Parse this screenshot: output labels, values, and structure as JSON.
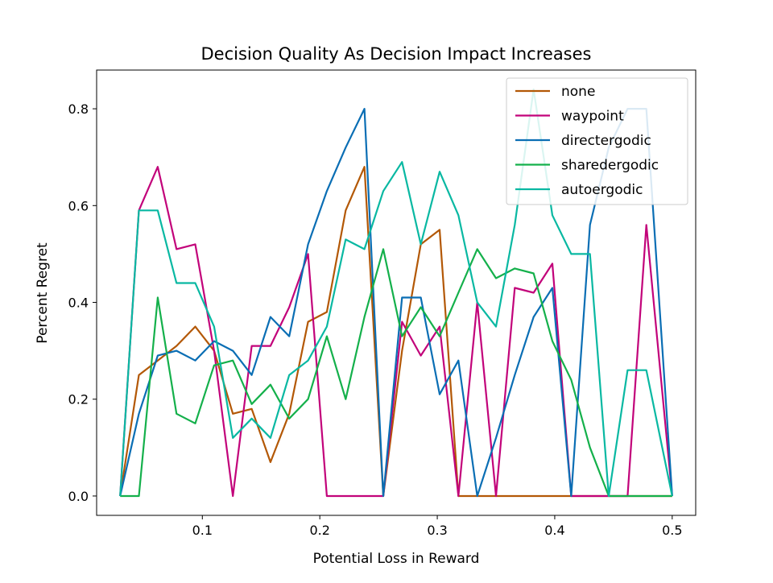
{
  "chart_data": {
    "type": "line",
    "title": "Decision Quality As Decision Impact Increases",
    "xlabel": "Potential Loss in Reward",
    "ylabel": "Percent Regret",
    "xlim": [
      0.01,
      0.52
    ],
    "ylim": [
      -0.04,
      0.88
    ],
    "xticks": [
      0.1,
      0.2,
      0.3,
      0.4,
      0.5
    ],
    "xtick_labels": [
      "0.1",
      "0.2",
      "0.3",
      "0.4",
      "0.5"
    ],
    "yticks": [
      0.0,
      0.2,
      0.4,
      0.6,
      0.8
    ],
    "ytick_labels": [
      "0.0",
      "0.2",
      "0.4",
      "0.6",
      "0.8"
    ],
    "grid": false,
    "legend_position": "top-right",
    "series": [
      {
        "name": "none",
        "color": "#b35806",
        "x": [
          0.03,
          0.046,
          0.062,
          0.078,
          0.094,
          0.11,
          0.126,
          0.142,
          0.158,
          0.174,
          0.19,
          0.206,
          0.222,
          0.238,
          0.254,
          0.27,
          0.286,
          0.302,
          0.318,
          0.334,
          0.35,
          0.366,
          0.382,
          0.398,
          0.414,
          0.43,
          0.446,
          0.462,
          0.478,
          0.5
        ],
        "values": [
          0.0,
          0.25,
          0.28,
          0.31,
          0.35,
          0.3,
          0.17,
          0.18,
          0.07,
          0.17,
          0.36,
          0.38,
          0.59,
          0.68,
          0.0,
          0.3,
          0.52,
          0.55,
          0.0,
          0.0,
          0.0,
          0.0,
          0.0,
          0.0,
          0.0,
          0.0,
          0.0,
          0.0,
          0.0,
          0.0
        ]
      },
      {
        "name": "waypoint",
        "color": "#c2037a",
        "x": [
          0.03,
          0.046,
          0.062,
          0.078,
          0.094,
          0.11,
          0.126,
          0.142,
          0.158,
          0.174,
          0.19,
          0.206,
          0.222,
          0.238,
          0.254,
          0.27,
          0.286,
          0.302,
          0.318,
          0.334,
          0.35,
          0.366,
          0.382,
          0.398,
          0.414,
          0.43,
          0.446,
          0.462,
          0.478,
          0.5
        ],
        "values": [
          0.0,
          0.59,
          0.68,
          0.51,
          0.52,
          0.3,
          0.0,
          0.31,
          0.31,
          0.39,
          0.5,
          0.0,
          0.0,
          0.0,
          0.0,
          0.36,
          0.29,
          0.35,
          0.0,
          0.4,
          0.0,
          0.43,
          0.42,
          0.48,
          0.0,
          0.0,
          0.0,
          0.0,
          0.56,
          0.0
        ]
      },
      {
        "name": "directergodic",
        "color": "#0a6eb4",
        "x": [
          0.03,
          0.046,
          0.062,
          0.078,
          0.094,
          0.11,
          0.126,
          0.142,
          0.158,
          0.174,
          0.19,
          0.206,
          0.222,
          0.238,
          0.254,
          0.27,
          0.286,
          0.302,
          0.318,
          0.334,
          0.35,
          0.366,
          0.382,
          0.398,
          0.414,
          0.43,
          0.446,
          0.462,
          0.478,
          0.5
        ],
        "values": [
          0.0,
          0.17,
          0.29,
          0.3,
          0.28,
          0.32,
          0.3,
          0.25,
          0.37,
          0.33,
          0.52,
          0.63,
          0.72,
          0.8,
          0.0,
          0.41,
          0.41,
          0.21,
          0.28,
          0.0,
          0.12,
          0.25,
          0.37,
          0.43,
          0.0,
          0.56,
          0.72,
          0.8,
          0.8,
          0.0
        ]
      },
      {
        "name": "sharedergodic",
        "color": "#14b04b",
        "x": [
          0.03,
          0.046,
          0.062,
          0.078,
          0.094,
          0.11,
          0.126,
          0.142,
          0.158,
          0.174,
          0.19,
          0.206,
          0.222,
          0.238,
          0.254,
          0.27,
          0.286,
          0.302,
          0.318,
          0.334,
          0.35,
          0.366,
          0.382,
          0.398,
          0.414,
          0.43,
          0.446,
          0.462,
          0.478,
          0.5
        ],
        "values": [
          0.0,
          0.0,
          0.41,
          0.17,
          0.15,
          0.27,
          0.28,
          0.19,
          0.23,
          0.16,
          0.2,
          0.33,
          0.2,
          0.37,
          0.51,
          0.33,
          0.39,
          0.33,
          0.42,
          0.51,
          0.45,
          0.47,
          0.46,
          0.32,
          0.24,
          0.1,
          0.0,
          0.0,
          0.0,
          0.0
        ]
      },
      {
        "name": "autoergodic",
        "color": "#09b8a2",
        "x": [
          0.03,
          0.046,
          0.062,
          0.078,
          0.094,
          0.11,
          0.126,
          0.142,
          0.158,
          0.174,
          0.19,
          0.206,
          0.222,
          0.238,
          0.254,
          0.27,
          0.286,
          0.302,
          0.318,
          0.334,
          0.35,
          0.366,
          0.382,
          0.398,
          0.414,
          0.43,
          0.446,
          0.462,
          0.478,
          0.5
        ],
        "values": [
          0.0,
          0.59,
          0.59,
          0.44,
          0.44,
          0.35,
          0.12,
          0.16,
          0.12,
          0.25,
          0.28,
          0.35,
          0.53,
          0.51,
          0.63,
          0.69,
          0.52,
          0.67,
          0.58,
          0.4,
          0.35,
          0.56,
          0.84,
          0.58,
          0.5,
          0.5,
          0.0,
          0.26,
          0.26,
          0.0
        ]
      }
    ]
  }
}
